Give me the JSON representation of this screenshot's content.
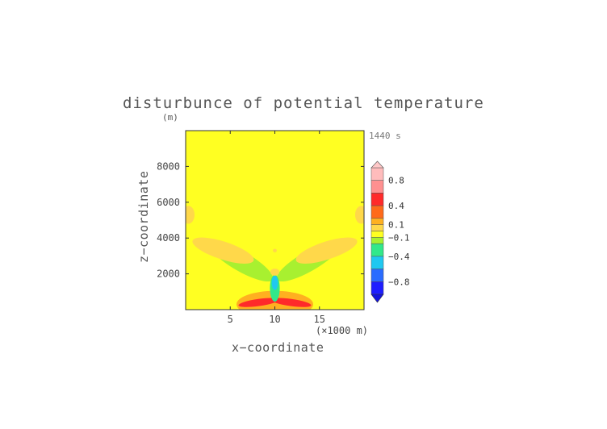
{
  "chart_data": {
    "type": "heatmap",
    "title": "disturbunce of potential temperature",
    "units_label": "(m)",
    "time_label": "1440 s",
    "xlabel": "x−coordinate",
    "ylabel": "z−coordinate",
    "x_unit_label": "(×1000 m)",
    "xlim": [
      0,
      20
    ],
    "ylim": [
      0,
      10000
    ],
    "x_ticks": [
      5,
      10,
      15
    ],
    "x_tick_labels": [
      "5",
      "10",
      "15"
    ],
    "y_ticks": [
      2000,
      4000,
      6000,
      8000
    ],
    "y_tick_labels": [
      "2000",
      "4000",
      "6000",
      "8000"
    ],
    "colorbar": {
      "labels": [
        {
          "level": 0.8,
          "text": "0.8"
        },
        {
          "level": 0.4,
          "text": "0.4"
        },
        {
          "level": 0.1,
          "text": "0.1"
        },
        {
          "level": -0.1,
          "text": "−0.1"
        },
        {
          "level": -0.4,
          "text": "−0.4"
        },
        {
          "level": -0.8,
          "text": "−0.8"
        }
      ],
      "bands": [
        {
          "lo": 0.8,
          "hi": 1.0,
          "color": "#ffbcbc"
        },
        {
          "lo": 0.6,
          "hi": 0.8,
          "color": "#ff9090"
        },
        {
          "lo": 0.4,
          "hi": 0.6,
          "color": "#ff2a2a"
        },
        {
          "lo": 0.2,
          "hi": 0.4,
          "color": "#ff6a1a"
        },
        {
          "lo": 0.1,
          "hi": 0.2,
          "color": "#ffb020"
        },
        {
          "lo": 0.0,
          "hi": 0.1,
          "color": "#ffd84a"
        },
        {
          "lo": -0.1,
          "hi": 0.0,
          "color": "#ffff22"
        },
        {
          "lo": -0.2,
          "hi": -0.1,
          "color": "#a8f030"
        },
        {
          "lo": -0.4,
          "hi": -0.2,
          "color": "#32e88a"
        },
        {
          "lo": -0.6,
          "hi": -0.4,
          "color": "#20c8f0"
        },
        {
          "lo": -0.8,
          "hi": -0.6,
          "color": "#2a6cff"
        },
        {
          "lo": -1.0,
          "hi": -0.8,
          "color": "#1e1eff"
        }
      ],
      "under_color": "#1414dd",
      "over_color": "#ffc8c8"
    },
    "field_features": [
      {
        "kind": "ellipse",
        "cx": 10,
        "cz": 300,
        "rx": 4.3,
        "rz": 750,
        "angle": 0,
        "value": 0.15
      },
      {
        "kind": "ellipse",
        "cx": 8.2,
        "cz": 400,
        "rx": 2.3,
        "rz": 200,
        "angle": -8,
        "value": 0.45
      },
      {
        "kind": "ellipse",
        "cx": 11.8,
        "cz": 400,
        "rx": 2.3,
        "rz": 200,
        "angle": 8,
        "value": 0.45
      },
      {
        "kind": "ellipse",
        "cx": 6.2,
        "cz": 2700,
        "rx": 4.1,
        "rz": 550,
        "angle": 30,
        "value": -0.15
      },
      {
        "kind": "ellipse",
        "cx": 13.8,
        "cz": 2700,
        "rx": 4.1,
        "rz": 550,
        "angle": -30,
        "value": -0.15
      },
      {
        "kind": "ellipse",
        "cx": 4.2,
        "cz": 3300,
        "rx": 3.6,
        "rz": 500,
        "angle": 18,
        "value": 0.05
      },
      {
        "kind": "ellipse",
        "cx": 15.8,
        "cz": 3300,
        "rx": 3.6,
        "rz": 500,
        "angle": -18,
        "value": 0.05
      },
      {
        "kind": "ellipse",
        "cx": 0.3,
        "cz": 5300,
        "rx": 0.7,
        "rz": 500,
        "angle": 0,
        "value": 0.05
      },
      {
        "kind": "ellipse",
        "cx": 19.7,
        "cz": 5300,
        "rx": 0.7,
        "rz": 500,
        "angle": 0,
        "value": 0.05
      },
      {
        "kind": "ellipse",
        "cx": 10,
        "cz": 1200,
        "rx": 0.55,
        "rz": 750,
        "angle": 0,
        "value": -0.25
      },
      {
        "kind": "ellipse",
        "cx": 10,
        "cz": 1500,
        "rx": 0.35,
        "rz": 400,
        "angle": 0,
        "value": -0.45
      },
      {
        "kind": "ellipse",
        "cx": 10,
        "cz": 2100,
        "rx": 0.5,
        "rz": 200,
        "angle": 0,
        "value": 0.05
      },
      {
        "kind": "ellipse",
        "cx": 10,
        "cz": 3300,
        "rx": 0.22,
        "rz": 100,
        "angle": 0,
        "value": 0.05
      }
    ]
  }
}
